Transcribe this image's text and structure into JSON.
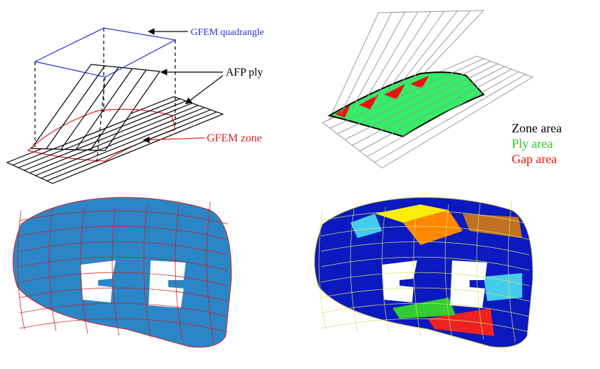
{
  "annotations": {
    "quadrangle": "GFEM quadrangle",
    "ply": "AFP ply",
    "zone": "GFEM zone"
  },
  "legend": [
    {
      "label": "Zone area",
      "color": "#000000"
    },
    {
      "label": "Ply area",
      "color": "#22cc22"
    },
    {
      "label": "Gap area",
      "color": "#ee1111"
    }
  ]
}
